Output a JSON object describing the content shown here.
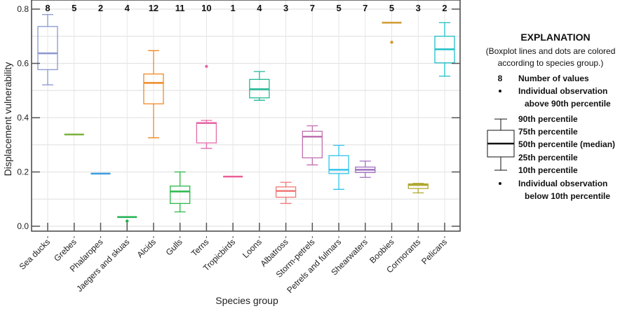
{
  "chart_data": {
    "type": "boxplot",
    "xlabel": "Species group",
    "ylabel": "Displacement vulnerability",
    "ylim": [
      0.0,
      0.8
    ],
    "yticks": [
      "0.0",
      "0.2",
      "0.4",
      "0.6",
      "0.8"
    ],
    "grid": true,
    "legend_placement": "right",
    "categories": [
      "Sea ducks",
      "Grebes",
      "Phalaropes",
      "Jaegers and skuas",
      "Alcids",
      "Gulls",
      "Terns",
      "Tropicbirds",
      "Loons",
      "Albatross",
      "Storm-petrels",
      "Petrels and fulmars",
      "Shearwaters",
      "Boobies",
      "Cormorants",
      "Pelicans"
    ],
    "counts": [
      "8",
      "5",
      "2",
      "4",
      "12",
      "11",
      "10",
      "1",
      "4",
      "3",
      "7",
      "5",
      "7",
      "5",
      "3",
      "2"
    ],
    "colors": [
      "#8c96d0",
      "#7ab03c",
      "#3a9de0",
      "#20b050",
      "#f08a24",
      "#2cb84a",
      "#e66aa8",
      "#ec5f96",
      "#22b894",
      "#f07878",
      "#c070b0",
      "#30c4ec",
      "#a070c0",
      "#d09a30",
      "#b0a830",
      "#20c0c8"
    ],
    "boxes": [
      {
        "p10": 0.521,
        "p25": 0.577,
        "median": 0.637,
        "p75": 0.736,
        "p90": 0.78,
        "outliers": []
      },
      {
        "p10": 0.338,
        "p25": 0.338,
        "median": 0.338,
        "p75": 0.338,
        "p90": 0.338,
        "outliers": []
      },
      {
        "p10": 0.194,
        "p25": 0.194,
        "median": 0.194,
        "p75": 0.194,
        "p90": 0.194,
        "outliers": []
      },
      {
        "p10": 0.034,
        "p25": 0.034,
        "median": 0.034,
        "p75": 0.034,
        "p90": 0.034,
        "outliers": [
          0.019
        ]
      },
      {
        "p10": 0.326,
        "p25": 0.451,
        "median": 0.528,
        "p75": 0.561,
        "p90": 0.647,
        "outliers": []
      },
      {
        "p10": 0.053,
        "p25": 0.084,
        "median": 0.128,
        "p75": 0.148,
        "p90": 0.2,
        "outliers": []
      },
      {
        "p10": 0.287,
        "p25": 0.307,
        "median": 0.38,
        "p75": 0.382,
        "p90": 0.39,
        "outliers": [
          0.589
        ]
      },
      {
        "p10": 0.183,
        "p25": 0.183,
        "median": 0.183,
        "p75": 0.183,
        "p90": 0.183,
        "outliers": []
      },
      {
        "p10": 0.464,
        "p25": 0.473,
        "median": 0.505,
        "p75": 0.541,
        "p90": 0.57,
        "outliers": []
      },
      {
        "p10": 0.084,
        "p25": 0.107,
        "median": 0.13,
        "p75": 0.145,
        "p90": 0.162,
        "outliers": []
      },
      {
        "p10": 0.226,
        "p25": 0.252,
        "median": 0.33,
        "p75": 0.35,
        "p90": 0.37,
        "outliers": []
      },
      {
        "p10": 0.136,
        "p25": 0.194,
        "median": 0.208,
        "p75": 0.26,
        "p90": 0.298,
        "outliers": []
      },
      {
        "p10": 0.18,
        "p25": 0.198,
        "median": 0.208,
        "p75": 0.218,
        "p90": 0.24,
        "outliers": []
      },
      {
        "p10": 0.75,
        "p25": 0.75,
        "median": 0.75,
        "p75": 0.75,
        "p90": 0.75,
        "outliers": [
          0.678
        ]
      },
      {
        "p10": 0.123,
        "p25": 0.139,
        "median": 0.152,
        "p75": 0.156,
        "p90": 0.158,
        "outliers": []
      },
      {
        "p10": 0.553,
        "p25": 0.602,
        "median": 0.652,
        "p75": 0.7,
        "p90": 0.75,
        "outliers": []
      }
    ]
  },
  "legend": {
    "title": "EXPLANATION",
    "note_line1": "(Boxplot lines and dots are colored",
    "note_line2": "according to species group.)",
    "count_symbol": "8",
    "count_label": "Number of values",
    "above_line1": "Individual observation",
    "above_line2": "above 90th percentile",
    "p90": "90th percentile",
    "p75": "75th percentile",
    "p50": "50th percentile (median)",
    "p25": "25th percentile",
    "p10": "10th percentile",
    "below_line1": "Individual observation",
    "below_line2": "below 10th percentile"
  }
}
